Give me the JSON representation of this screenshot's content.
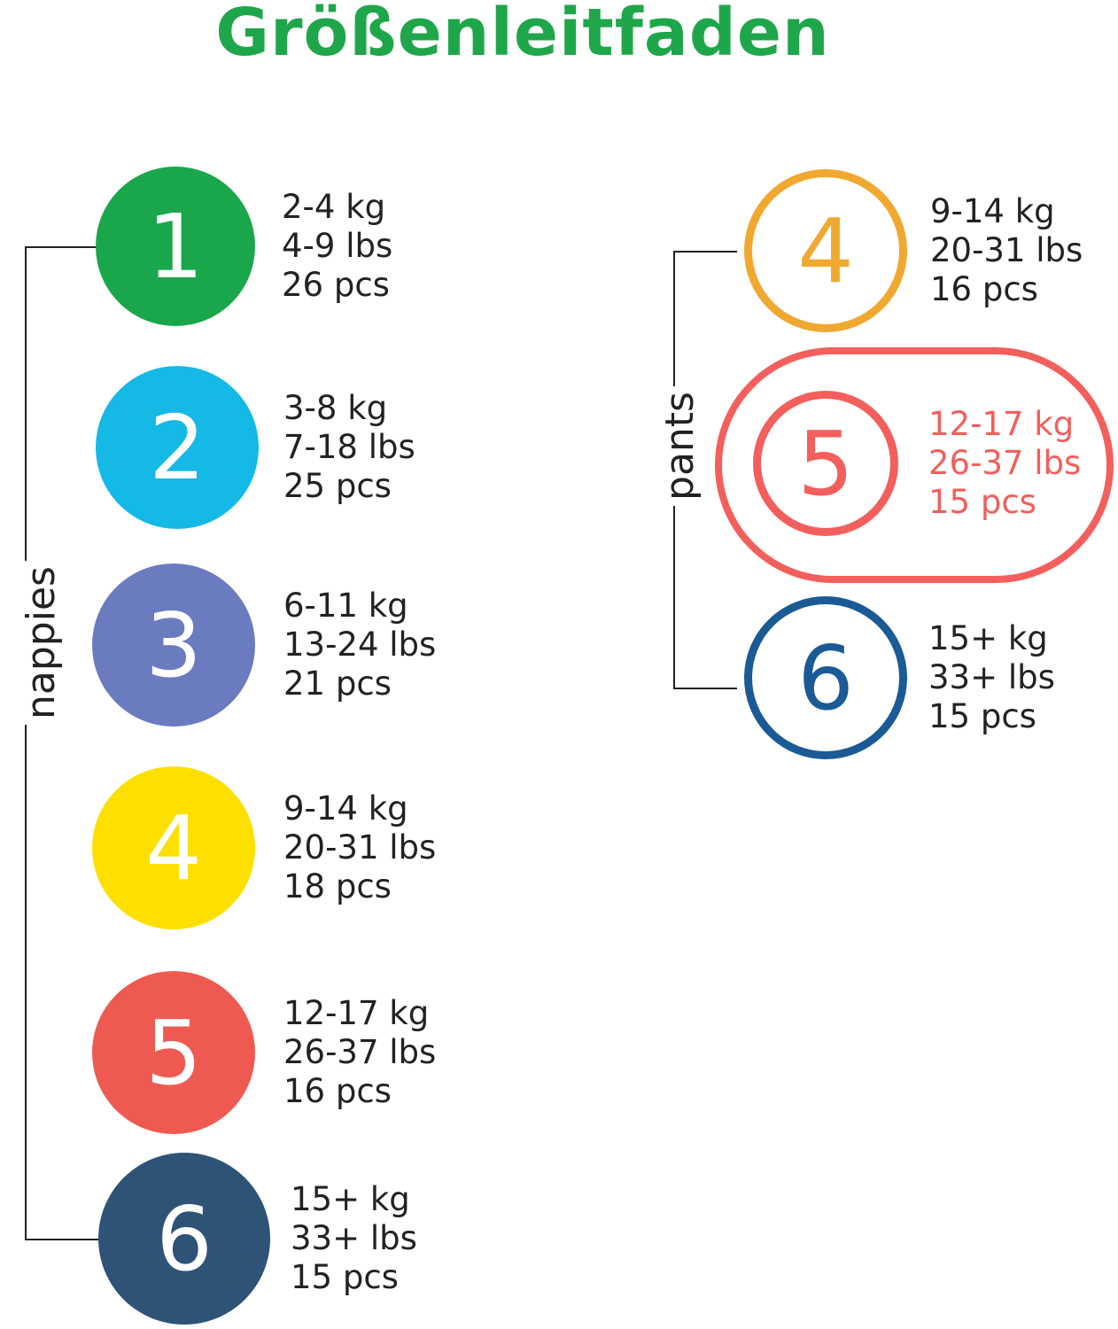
{
  "title": "Größenleitfaden",
  "nappies": {
    "label": "nappies",
    "items": [
      {
        "size": "1",
        "kg": "2-4 kg",
        "lbs": "4-9 lbs",
        "pcs": "26 pcs",
        "color": "#1aa64a"
      },
      {
        "size": "2",
        "kg": "3-8 kg",
        "lbs": "7-18 lbs",
        "pcs": "25 pcs",
        "color": "#14b9e6"
      },
      {
        "size": "3",
        "kg": "6-11 kg",
        "lbs": "13-24 lbs",
        "pcs": "21  pcs",
        "color": "#6a7bbf"
      },
      {
        "size": "4",
        "kg": "9-14 kg",
        "lbs": "20-31 lbs",
        "pcs": "18 pcs",
        "color": "#fde000"
      },
      {
        "size": "5",
        "kg": "12-17 kg",
        "lbs": "26-37 lbs",
        "pcs": "16  pcs",
        "color": "#ee5a52"
      },
      {
        "size": "6",
        "kg": "15+ kg",
        "lbs": "33+ lbs",
        "pcs": "15 pcs",
        "color": "#2e5377"
      }
    ]
  },
  "pants": {
    "label": "pants",
    "items": [
      {
        "size": "4",
        "kg": "9-14 kg",
        "lbs": "20-31 lbs",
        "pcs": "16 pcs",
        "color": "#f0a830"
      },
      {
        "size": "5",
        "kg": "12-17 kg",
        "lbs": "26-37 lbs",
        "pcs": "15 pcs",
        "color": "#f25f5c",
        "highlighted": true
      },
      {
        "size": "6",
        "kg": "15+ kg",
        "lbs": "33+ lbs",
        "pcs": "15 pcs",
        "color": "#1a5a95"
      }
    ]
  }
}
